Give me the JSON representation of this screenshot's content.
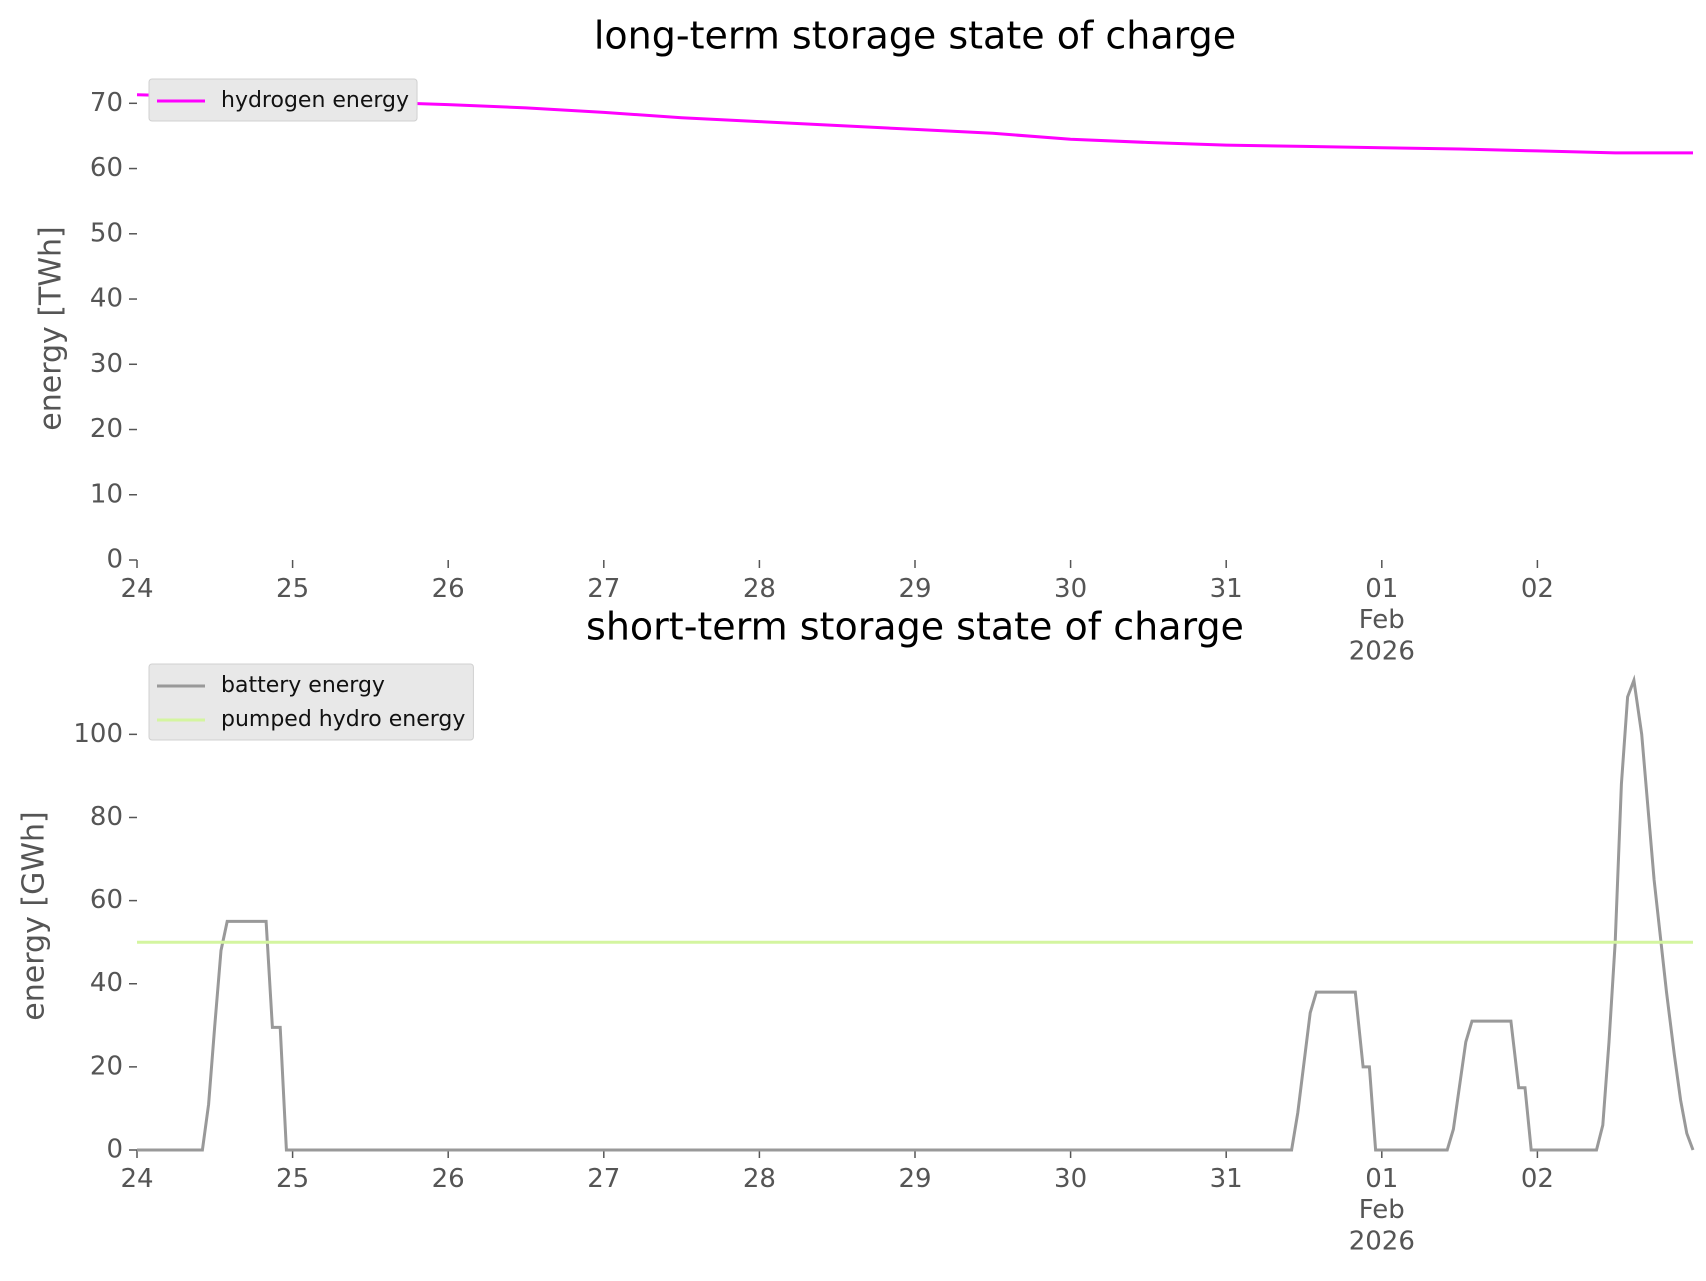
{
  "chart_data": [
    {
      "type": "line",
      "title": "long-term storage state of charge",
      "ylabel": "energy [TWh]",
      "xlim": [
        0,
        10
      ],
      "ylim": [
        0,
        72.5
      ],
      "xticks": [
        {
          "value": 0,
          "label": "24"
        },
        {
          "value": 1,
          "label": "25"
        },
        {
          "value": 2,
          "label": "26"
        },
        {
          "value": 3,
          "label": "27"
        },
        {
          "value": 4,
          "label": "28"
        },
        {
          "value": 5,
          "label": "29"
        },
        {
          "value": 6,
          "label": "30"
        },
        {
          "value": 7,
          "label": "31"
        },
        {
          "value": 8,
          "label": "01\nFeb\n2026"
        },
        {
          "value": 9,
          "label": "02"
        }
      ],
      "yticks": [
        0,
        10,
        20,
        30,
        40,
        50,
        60,
        70
      ],
      "legend": "upper-left",
      "series": [
        {
          "name": "hydrogen energy",
          "color": "#ff00ff",
          "x": [
            0,
            0.5,
            1,
            1.5,
            2,
            2.5,
            3,
            3.5,
            4,
            4.5,
            5,
            5.5,
            6,
            6.5,
            7,
            7.5,
            8,
            8.5,
            9,
            9.5,
            10
          ],
          "values": [
            71.3,
            71.0,
            70.6,
            70.2,
            69.8,
            69.3,
            68.6,
            67.8,
            67.2,
            66.6,
            66.0,
            65.4,
            64.5,
            64.0,
            63.6,
            63.4,
            63.2,
            63.0,
            62.7,
            62.4,
            62.4
          ]
        }
      ]
    },
    {
      "type": "line",
      "title": "short-term storage state of charge",
      "ylabel": "energy [GWh]",
      "xlim": [
        0,
        10
      ],
      "ylim": [
        0,
        115
      ],
      "xticks": [
        {
          "value": 0,
          "label": "24"
        },
        {
          "value": 1,
          "label": "25"
        },
        {
          "value": 2,
          "label": "26"
        },
        {
          "value": 3,
          "label": "27"
        },
        {
          "value": 4,
          "label": "28"
        },
        {
          "value": 5,
          "label": "29"
        },
        {
          "value": 6,
          "label": "30"
        },
        {
          "value": 7,
          "label": "31"
        },
        {
          "value": 8,
          "label": "01\nFeb\n2026"
        },
        {
          "value": 9,
          "label": "02"
        }
      ],
      "yticks": [
        0,
        20,
        40,
        60,
        80,
        100
      ],
      "legend": "upper-left",
      "series": [
        {
          "name": "battery energy",
          "color": "#999999",
          "x": [
            0,
            0.42,
            0.46,
            0.5,
            0.54,
            0.58,
            0.83,
            0.87,
            0.92,
            0.96,
            7.42,
            7.46,
            7.54,
            7.58,
            7.83,
            7.88,
            7.92,
            7.96,
            8.42,
            8.46,
            8.54,
            8.58,
            8.83,
            8.88,
            8.92,
            8.96,
            9.38,
            9.42,
            9.46,
            9.5,
            9.54,
            9.58,
            9.62,
            9.67,
            9.75,
            9.83,
            9.88,
            9.92,
            9.96,
            10
          ],
          "values": [
            0,
            0,
            11,
            30,
            48,
            55,
            55,
            29.5,
            29.5,
            0,
            0,
            9,
            33,
            38,
            38,
            20,
            20,
            0,
            0,
            5,
            26,
            31,
            31,
            15,
            15,
            0,
            0,
            6,
            26,
            50,
            88,
            109,
            113,
            100,
            65,
            38,
            23,
            12,
            4,
            0
          ]
        },
        {
          "name": "pumped hydro energy",
          "color": "#d4f5a0",
          "x": [
            0,
            10
          ],
          "values": [
            50,
            50
          ]
        }
      ]
    }
  ]
}
